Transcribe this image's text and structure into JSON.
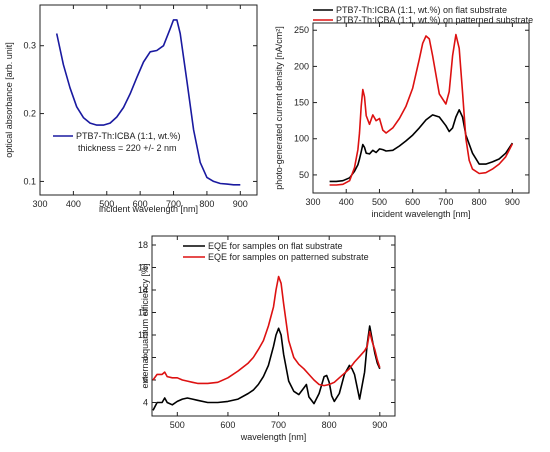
{
  "chart_data": [
    {
      "type": "line",
      "xlabel": "incident wavelength [nm]",
      "ylabel": "optical absorbance [arb. unit]",
      "xlim": [
        300,
        950
      ],
      "ylim": [
        0.08,
        0.36
      ],
      "xticks": [
        300,
        400,
        500,
        600,
        700,
        800,
        900
      ],
      "yticks": [
        0.1,
        0.2,
        0.3
      ],
      "ytick_labels": [
        "0.1",
        "0.2",
        "0.3"
      ],
      "legend_position": "center-right",
      "series": [
        {
          "name": "PTB7-Th:ICBA (1:1, wt.%)",
          "legend_extra": "thickness = 220 +/- 2 nm",
          "color": "#1a1aa0",
          "x": [
            350,
            370,
            390,
            410,
            430,
            450,
            470,
            490,
            510,
            530,
            550,
            570,
            590,
            610,
            630,
            650,
            670,
            690,
            700,
            710,
            720,
            740,
            760,
            780,
            800,
            820,
            840,
            860,
            880,
            900
          ],
          "y": [
            0.318,
            0.272,
            0.238,
            0.21,
            0.194,
            0.186,
            0.183,
            0.183,
            0.186,
            0.195,
            0.209,
            0.229,
            0.253,
            0.276,
            0.291,
            0.293,
            0.3,
            0.325,
            0.338,
            0.338,
            0.318,
            0.248,
            0.176,
            0.128,
            0.106,
            0.1,
            0.097,
            0.096,
            0.095,
            0.095
          ]
        }
      ]
    },
    {
      "type": "line",
      "xlabel": "incident wavelength [nm]",
      "ylabel": "photo-generated current density [nA/cm²]",
      "xlim": [
        300,
        950
      ],
      "ylim": [
        25,
        260
      ],
      "xticks": [
        300,
        400,
        500,
        600,
        700,
        800,
        900
      ],
      "yticks": [
        50,
        100,
        150,
        200,
        250
      ],
      "legend_position": "top",
      "series": [
        {
          "name": "PTB7-Th:ICBA (1:1, wt.%) on flat substrate",
          "color": "#000000",
          "x": [
            350,
            370,
            390,
            410,
            425,
            435,
            440,
            445,
            450,
            455,
            460,
            470,
            480,
            490,
            500,
            510,
            520,
            540,
            560,
            580,
            600,
            620,
            640,
            660,
            680,
            700,
            710,
            720,
            730,
            740,
            750,
            760,
            780,
            800,
            820,
            840,
            860,
            880,
            900
          ],
          "y": [
            41,
            41,
            42,
            46,
            55,
            64,
            72,
            82,
            92,
            88,
            80,
            79,
            84,
            81,
            86,
            85,
            83,
            84,
            90,
            97,
            105,
            115,
            126,
            133,
            130,
            118,
            110,
            115,
            130,
            140,
            130,
            105,
            80,
            65,
            65,
            68,
            72,
            80,
            94
          ]
        },
        {
          "name": "PTB7-Th:ICBA (1:1, wt.%) on patterned substrate",
          "color": "#dd1111",
          "x": [
            350,
            370,
            390,
            410,
            425,
            435,
            440,
            445,
            450,
            455,
            460,
            470,
            480,
            490,
            500,
            510,
            520,
            540,
            560,
            580,
            600,
            620,
            630,
            640,
            650,
            660,
            680,
            700,
            710,
            720,
            730,
            740,
            750,
            760,
            770,
            780,
            800,
            820,
            840,
            860,
            880,
            900
          ],
          "y": [
            36,
            36,
            37,
            42,
            60,
            85,
            108,
            145,
            168,
            158,
            132,
            120,
            133,
            125,
            128,
            112,
            108,
            115,
            128,
            145,
            170,
            210,
            232,
            242,
            238,
            215,
            162,
            148,
            165,
            215,
            244,
            225,
            165,
            100,
            70,
            58,
            52,
            53,
            58,
            65,
            75,
            93
          ]
        }
      ]
    },
    {
      "type": "line",
      "xlabel": "wavelength [nm]",
      "ylabel": "external quantum efficiency [%]",
      "xlim": [
        450,
        930
      ],
      "ylim": [
        2.8,
        18.8
      ],
      "xticks": [
        500,
        600,
        700,
        800,
        900
      ],
      "yticks": [
        4,
        6,
        8,
        10,
        12,
        14,
        16,
        18
      ],
      "legend_position": "top-left",
      "series": [
        {
          "name": "EQE for samples on flat substrate",
          "color": "#000000",
          "x": [
            452,
            460,
            470,
            475,
            480,
            490,
            500,
            510,
            520,
            530,
            540,
            560,
            580,
            600,
            620,
            640,
            650,
            660,
            670,
            680,
            690,
            695,
            700,
            705,
            710,
            720,
            730,
            740,
            750,
            755,
            760,
            770,
            780,
            790,
            795,
            800,
            805,
            810,
            820,
            830,
            840,
            845,
            850,
            860,
            870,
            875,
            880,
            885,
            890,
            895,
            900
          ],
          "y": [
            3.3,
            4.0,
            4.0,
            4.4,
            4.0,
            3.8,
            4.1,
            4.3,
            4.4,
            4.3,
            4.2,
            4.0,
            4.0,
            4.1,
            4.3,
            4.8,
            5.1,
            5.6,
            6.3,
            7.3,
            9.0,
            10.0,
            10.6,
            10.0,
            8.3,
            5.9,
            5.0,
            4.7,
            5.3,
            5.6,
            4.5,
            3.9,
            4.8,
            6.3,
            6.4,
            5.8,
            4.6,
            4.1,
            4.8,
            6.5,
            7.3,
            7.0,
            6.5,
            4.3,
            6.7,
            9.2,
            10.8,
            9.6,
            8.4,
            7.5,
            7.0
          ]
        },
        {
          "name": "EQE for samples on patterned substrate",
          "color": "#dd1111",
          "x": [
            452,
            460,
            470,
            475,
            480,
            490,
            500,
            510,
            520,
            530,
            540,
            560,
            580,
            600,
            620,
            640,
            650,
            660,
            670,
            680,
            690,
            695,
            700,
            705,
            710,
            720,
            730,
            740,
            750,
            760,
            770,
            780,
            790,
            800,
            810,
            820,
            830,
            840,
            850,
            860,
            870,
            875,
            880,
            885,
            890,
            895,
            900
          ],
          "y": [
            6.0,
            6.5,
            6.5,
            6.7,
            6.3,
            6.2,
            6.2,
            6.0,
            5.9,
            5.8,
            5.7,
            5.7,
            5.8,
            6.2,
            6.8,
            7.5,
            8.0,
            8.7,
            9.5,
            10.8,
            12.5,
            14.0,
            15.2,
            14.6,
            12.8,
            9.5,
            8.0,
            7.4,
            7.0,
            6.5,
            6.0,
            5.6,
            5.5,
            5.6,
            5.8,
            6.2,
            6.6,
            7.0,
            7.6,
            8.1,
            8.6,
            9.0,
            10.3,
            9.4,
            8.7,
            7.8,
            7.1
          ]
        }
      ]
    }
  ]
}
